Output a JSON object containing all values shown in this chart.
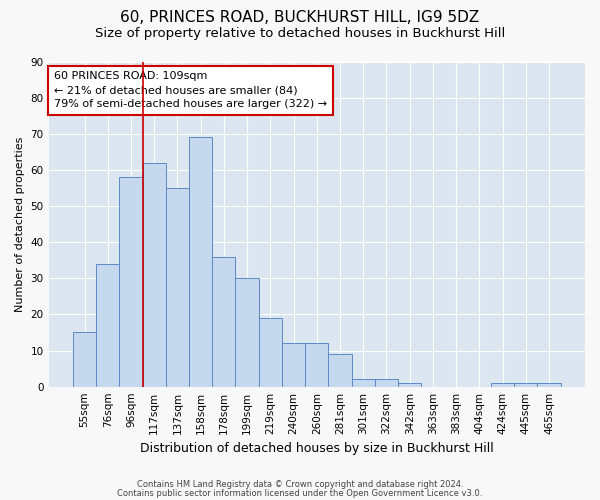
{
  "title": "60, PRINCES ROAD, BUCKHURST HILL, IG9 5DZ",
  "subtitle": "Size of property relative to detached houses in Buckhurst Hill",
  "xlabel": "Distribution of detached houses by size in Buckhurst Hill",
  "ylabel": "Number of detached properties",
  "footnote1": "Contains HM Land Registry data © Crown copyright and database right 2024.",
  "footnote2": "Contains public sector information licensed under the Open Government Licence v3.0.",
  "categories": [
    "55sqm",
    "76sqm",
    "96sqm",
    "117sqm",
    "137sqm",
    "158sqm",
    "178sqm",
    "199sqm",
    "219sqm",
    "240sqm",
    "260sqm",
    "281sqm",
    "301sqm",
    "322sqm",
    "342sqm",
    "363sqm",
    "383sqm",
    "404sqm",
    "424sqm",
    "445sqm",
    "465sqm"
  ],
  "values": [
    15,
    34,
    58,
    62,
    55,
    69,
    36,
    30,
    19,
    12,
    12,
    9,
    2,
    2,
    1,
    0,
    0,
    0,
    1,
    1,
    1
  ],
  "bar_color": "#c5d8ed",
  "bar_edge_color": "#5b8ac5",
  "background_color": "#dce6f1",
  "vline_x_index": 2.5,
  "vline_color": "#cc0000",
  "annotation_text": "60 PRINCES ROAD: 109sqm\n← 21% of detached houses are smaller (84)\n79% of semi-detached houses are larger (322) →",
  "annotation_box_color": "#cc0000",
  "annotation_fill": "#ffffff",
  "ylim": [
    0,
    90
  ],
  "yticks": [
    0,
    10,
    20,
    30,
    40,
    50,
    60,
    70,
    80,
    90
  ],
  "grid_color": "#ffffff",
  "title_fontsize": 11,
  "subtitle_fontsize": 9.5,
  "ylabel_fontsize": 8,
  "xlabel_fontsize": 9,
  "tick_fontsize": 7.5,
  "annot_fontsize": 8,
  "footnote_fontsize": 6
}
